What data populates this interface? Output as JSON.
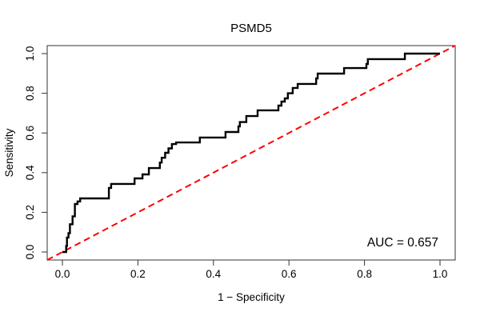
{
  "title": "PSMD5",
  "auc_label": "AUC = 0.657",
  "axes": {
    "x_label": "1 − Specificity",
    "y_label": "Sensitivity",
    "x_ticks": [
      "0.0",
      "0.2",
      "0.4",
      "0.6",
      "0.8",
      "1.0"
    ],
    "y_ticks": [
      "0.0",
      "0.2",
      "0.4",
      "0.6",
      "0.8",
      "1.0"
    ]
  },
  "colors": {
    "curve": "#000000",
    "diagonal": "#ff0000",
    "axis": "#333333",
    "text": "#000000",
    "background": "#ffffff"
  },
  "chart_data": {
    "type": "line",
    "title": "PSMD5",
    "xlabel": "1 − Specificity",
    "ylabel": "Sensitivity",
    "xlim": [
      0,
      1
    ],
    "ylim": [
      0,
      1
    ],
    "grid": false,
    "legend": "none",
    "annotation": "AUC = 0.657",
    "auc": 0.657,
    "series": [
      {
        "name": "ROC curve",
        "style": "step",
        "color": "#000000",
        "points": [
          [
            0.0,
            0.0
          ],
          [
            0.01,
            0.0
          ],
          [
            0.012,
            0.03
          ],
          [
            0.016,
            0.073
          ],
          [
            0.02,
            0.095
          ],
          [
            0.027,
            0.14
          ],
          [
            0.033,
            0.18
          ],
          [
            0.04,
            0.242
          ],
          [
            0.047,
            0.255
          ],
          [
            0.057,
            0.27
          ],
          [
            0.123,
            0.27
          ],
          [
            0.129,
            0.323
          ],
          [
            0.14,
            0.343
          ],
          [
            0.191,
            0.343
          ],
          [
            0.195,
            0.371
          ],
          [
            0.212,
            0.371
          ],
          [
            0.216,
            0.391
          ],
          [
            0.229,
            0.391
          ],
          [
            0.233,
            0.423
          ],
          [
            0.258,
            0.423
          ],
          [
            0.263,
            0.451
          ],
          [
            0.272,
            0.475
          ],
          [
            0.281,
            0.5
          ],
          [
            0.29,
            0.522
          ],
          [
            0.301,
            0.544
          ],
          [
            0.364,
            0.552
          ],
          [
            0.369,
            0.577
          ],
          [
            0.432,
            0.577
          ],
          [
            0.436,
            0.605
          ],
          [
            0.466,
            0.605
          ],
          [
            0.47,
            0.633
          ],
          [
            0.487,
            0.655
          ],
          [
            0.495,
            0.685
          ],
          [
            0.517,
            0.685
          ],
          [
            0.521,
            0.714
          ],
          [
            0.572,
            0.714
          ],
          [
            0.58,
            0.738
          ],
          [
            0.589,
            0.758
          ],
          [
            0.597,
            0.774
          ],
          [
            0.61,
            0.8
          ],
          [
            0.623,
            0.827
          ],
          [
            0.672,
            0.847
          ],
          [
            0.676,
            0.875
          ],
          [
            0.68,
            0.899
          ],
          [
            0.746,
            0.899
          ],
          [
            0.75,
            0.927
          ],
          [
            0.805,
            0.927
          ],
          [
            0.809,
            0.948
          ],
          [
            0.826,
            0.972
          ],
          [
            0.907,
            0.972
          ],
          [
            0.911,
            1.0
          ],
          [
            1.0,
            1.0
          ]
        ]
      },
      {
        "name": "chance diagonal",
        "style": "dashed",
        "color": "#ff0000",
        "points": [
          [
            0,
            0
          ],
          [
            1,
            1
          ]
        ]
      }
    ]
  }
}
